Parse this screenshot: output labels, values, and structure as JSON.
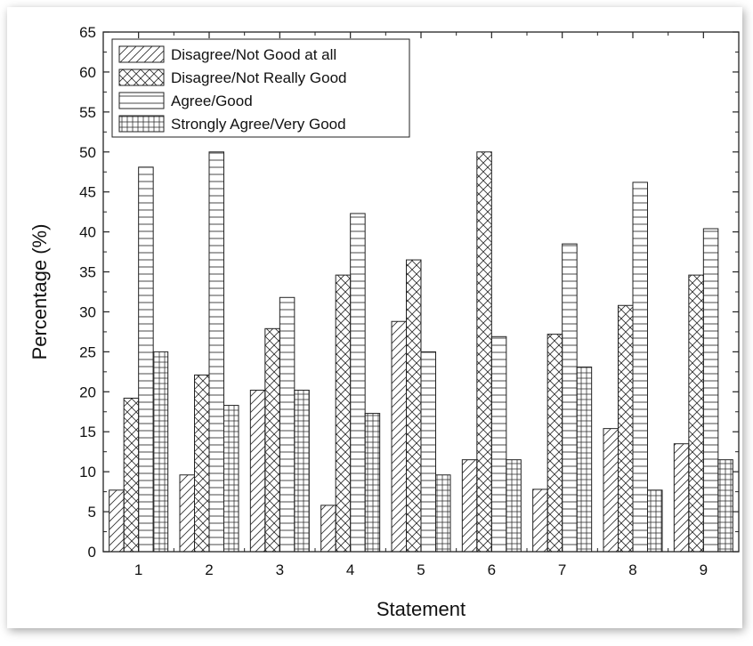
{
  "chart_data": {
    "type": "bar",
    "title": "",
    "xlabel": "Statement",
    "ylabel": "Percentage (%)",
    "ylim": [
      0,
      65
    ],
    "yticks": [
      0,
      5,
      10,
      15,
      20,
      25,
      30,
      35,
      40,
      45,
      50,
      55,
      60,
      65
    ],
    "categories": [
      "1",
      "2",
      "3",
      "4",
      "5",
      "6",
      "7",
      "8",
      "9"
    ],
    "legend_position": "top-left",
    "grid": false,
    "series": [
      {
        "name": "Disagree/Not Good at all",
        "pattern": "diagonal-hatch",
        "values": [
          7.7,
          9.6,
          20.2,
          5.8,
          28.8,
          11.5,
          7.8,
          15.4,
          13.5
        ]
      },
      {
        "name": "Disagree/Not Really Good",
        "pattern": "cross-hatch",
        "values": [
          19.2,
          22.1,
          27.9,
          34.6,
          36.5,
          50.0,
          27.2,
          30.8,
          34.6
        ]
      },
      {
        "name": "Agree/Good",
        "pattern": "horizontal-lines",
        "values": [
          48.1,
          50.0,
          31.8,
          42.3,
          25.0,
          26.9,
          38.5,
          46.2,
          40.4
        ]
      },
      {
        "name": "Strongly Agree/Very Good",
        "pattern": "grid",
        "values": [
          25.0,
          18.3,
          20.2,
          17.3,
          9.6,
          11.5,
          23.1,
          7.7,
          11.5
        ]
      }
    ]
  }
}
